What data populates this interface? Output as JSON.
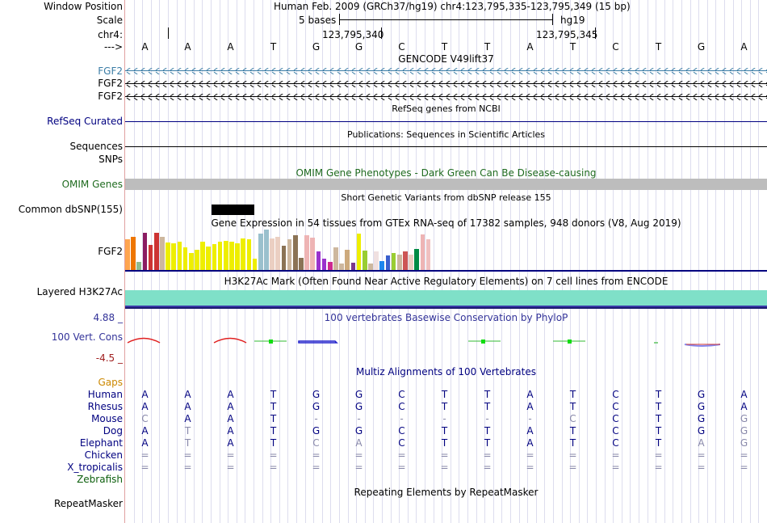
{
  "header": {
    "window_position_label": "Window Position",
    "window_position_value": "Human Feb. 2009 (GRCh37/hg19)   chr4:123,795,335-123,795,349 (15 bp)",
    "scale_label": "Scale",
    "scale_value": "5 bases",
    "assembly": "hg19",
    "chrom_label": "chr4:",
    "coord_1": "123,795,340",
    "coord_2": "123,795,345",
    "strand_label": "--->"
  },
  "bases": [
    "A",
    "A",
    "A",
    "T",
    "G",
    "G",
    "C",
    "T",
    "T",
    "A",
    "T",
    "C",
    "T",
    "G",
    "A"
  ],
  "tracks": {
    "gencode": {
      "title": "GENCODE V49lift37",
      "rows": [
        "FGF2",
        "FGF2",
        "FGF2"
      ],
      "first_color": "#3a7ca5"
    },
    "refseq": {
      "title": "RefSeq genes from NCBI",
      "label": "RefSeq Curated"
    },
    "publications": {
      "title": "Publications: Sequences in Scientific Articles",
      "label_sequences": "Sequences",
      "label_snps": "SNPs"
    },
    "omim": {
      "title": "OMIM Gene Phenotypes - Dark Green Can Be Disease-causing",
      "label": "OMIM Genes",
      "color": "#1f6b1f"
    },
    "dbsnp": {
      "title": "Short Genetic Variants from dbSNP release 155",
      "label": "Common dbSNP(155)"
    },
    "gtex": {
      "title": "Gene Expression in 54 tissues from GTEx RNA-seq of 17382 samples, 948 donors (V8, Aug 2019)",
      "label": "FGF2",
      "bars": [
        {
          "h": 0.75,
          "c": "#ffa54f"
        },
        {
          "h": 0.82,
          "c": "#ee7600"
        },
        {
          "h": 0.2,
          "c": "#8fbc8f"
        },
        {
          "h": 0.92,
          "c": "#8b1c62"
        },
        {
          "h": 0.62,
          "c": "#cd3333"
        },
        {
          "h": 0.92,
          "c": "#cd3333"
        },
        {
          "h": 0.82,
          "c": "#cdb79e"
        },
        {
          "h": 0.68,
          "c": "#eeee00"
        },
        {
          "h": 0.66,
          "c": "#eeee00"
        },
        {
          "h": 0.7,
          "c": "#eeee00"
        },
        {
          "h": 0.57,
          "c": "#eeee00"
        },
        {
          "h": 0.42,
          "c": "#eeee00"
        },
        {
          "h": 0.5,
          "c": "#eeee00"
        },
        {
          "h": 0.7,
          "c": "#eeee00"
        },
        {
          "h": 0.58,
          "c": "#eeee00"
        },
        {
          "h": 0.63,
          "c": "#eeee00"
        },
        {
          "h": 0.7,
          "c": "#eeee00"
        },
        {
          "h": 0.72,
          "c": "#eeee00"
        },
        {
          "h": 0.7,
          "c": "#eeee00"
        },
        {
          "h": 0.65,
          "c": "#eeee00"
        },
        {
          "h": 0.78,
          "c": "#eeee00"
        },
        {
          "h": 0.75,
          "c": "#eeee00"
        },
        {
          "h": 0.28,
          "c": "#eeee00"
        },
        {
          "h": 0.9,
          "c": "#9ac0cd"
        },
        {
          "h": 1.0,
          "c": "#9ac0cd"
        },
        {
          "h": 0.78,
          "c": "#ebcfc2"
        },
        {
          "h": 0.82,
          "c": "#ebcfc2"
        },
        {
          "h": 0.6,
          "c": "#8b7355"
        },
        {
          "h": 0.75,
          "c": "#cdb79e"
        },
        {
          "h": 0.85,
          "c": "#8b7355"
        },
        {
          "h": 0.3,
          "c": "#8b7355"
        },
        {
          "h": 0.85,
          "c": "#eeb4b4"
        },
        {
          "h": 0.8,
          "c": "#eeb4b4"
        },
        {
          "h": 0.45,
          "c": "#9a32cd"
        },
        {
          "h": 0.28,
          "c": "#9a32cd"
        },
        {
          "h": 0.2,
          "c": "#cd2990"
        },
        {
          "h": 0.55,
          "c": "#cdb79e"
        },
        {
          "h": 0.15,
          "c": "#cdb79e"
        },
        {
          "h": 0.5,
          "c": "#cdaa7d"
        },
        {
          "h": 0.18,
          "c": "#7a378b"
        },
        {
          "h": 0.9,
          "c": "#eeee00"
        },
        {
          "h": 0.48,
          "c": "#9acd32"
        },
        {
          "h": 0.15,
          "c": "#cdb79e"
        },
        {
          "h": 0.45,
          "c": "#f0e0e0"
        },
        {
          "h": 0.22,
          "c": "#1c86ee"
        },
        {
          "h": 0.35,
          "c": "#3a5fcd"
        },
        {
          "h": 0.42,
          "c": "#9acd32"
        },
        {
          "h": 0.38,
          "c": "#cdb79e"
        },
        {
          "h": 0.45,
          "c": "#cd5555"
        },
        {
          "h": 0.38,
          "c": "#ebcfc2"
        },
        {
          "h": 0.52,
          "c": "#008b45"
        },
        {
          "h": 0.88,
          "c": "#eeb4b4"
        },
        {
          "h": 0.75,
          "c": "#f0c0c0"
        }
      ]
    },
    "h3k27ac": {
      "title": "H3K27Ac Mark (Often Found Near Active Regulatory Elements) on 7 cell lines from ENCODE",
      "label": "Layered H3K27Ac",
      "color": "#7fe0c8"
    },
    "conservation": {
      "title": "100 vertebrates Basewise Conservation by PhyloP",
      "label": "100 Vert. Cons",
      "max": "4.88 _",
      "min": "-4.5 _",
      "color": "#333399"
    },
    "multiz": {
      "title": "Multiz Alignments of 100 Vertebrates",
      "gaps_label": "Gaps",
      "gaps_color": "#cc8800",
      "species": [
        {
          "name": "Human",
          "seq": [
            "A",
            "A",
            "A",
            "T",
            "G",
            "G",
            "C",
            "T",
            "T",
            "A",
            "T",
            "C",
            "T",
            "G",
            "A"
          ],
          "light": []
        },
        {
          "name": "Rhesus",
          "seq": [
            "A",
            "A",
            "A",
            "T",
            "G",
            "G",
            "C",
            "T",
            "T",
            "A",
            "T",
            "C",
            "T",
            "G",
            "A"
          ],
          "light": []
        },
        {
          "name": "Mouse",
          "seq": [
            "C",
            "A",
            "A",
            "T",
            "-",
            "-",
            "-",
            "-",
            "-",
            "-",
            "C",
            "C",
            "T",
            "G",
            "G"
          ],
          "light": [
            0,
            4,
            5,
            6,
            7,
            8,
            9,
            10,
            14
          ]
        },
        {
          "name": "Dog",
          "seq": [
            "A",
            "T",
            "A",
            "T",
            "G",
            "G",
            "C",
            "T",
            "T",
            "A",
            "T",
            "C",
            "T",
            "G",
            "G"
          ],
          "light": [
            1,
            14
          ]
        },
        {
          "name": "Elephant",
          "seq": [
            "A",
            "T",
            "A",
            "T",
            "C",
            "A",
            "C",
            "T",
            "T",
            "A",
            "T",
            "C",
            "T",
            "A",
            "G"
          ],
          "light": [
            1,
            4,
            5,
            13,
            14
          ]
        },
        {
          "name": "Chicken",
          "seq": [
            "=",
            "=",
            "=",
            "=",
            "=",
            "=",
            "=",
            "=",
            "=",
            "=",
            "=",
            "=",
            "=",
            "=",
            "="
          ],
          "light": [
            0,
            1,
            2,
            3,
            4,
            5,
            6,
            7,
            8,
            9,
            10,
            11,
            12,
            13,
            14
          ]
        },
        {
          "name": "X_tropicalis",
          "seq": [
            "=",
            "=",
            "=",
            "=",
            "=",
            "=",
            "=",
            "=",
            "=",
            "=",
            "=",
            "=",
            "=",
            "=",
            "="
          ],
          "light": [
            0,
            1,
            2,
            3,
            4,
            5,
            6,
            7,
            8,
            9,
            10,
            11,
            12,
            13,
            14
          ]
        },
        {
          "name": "Zebrafish",
          "seq": [],
          "light": []
        }
      ],
      "name_color": "#000080",
      "zebrafish_color": "#0d5f0d",
      "letter_color": "#000080",
      "light_color": "#8888aa"
    },
    "repeatmasker": {
      "title": "Repeating Elements by RepeatMasker",
      "label": "RepeatMasker"
    }
  }
}
